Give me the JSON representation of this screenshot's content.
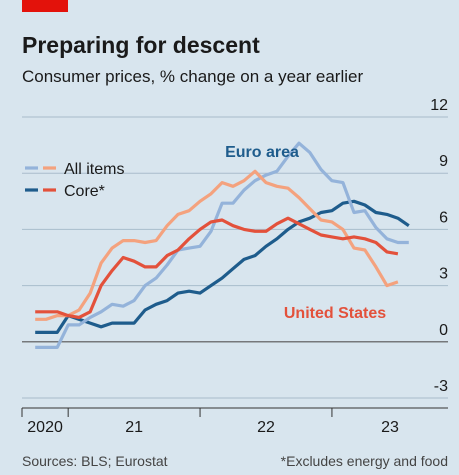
{
  "chart_data": {
    "type": "line",
    "title": "Preparing for descent",
    "subtitle": "Consumer prices, % change on a year earlier",
    "source": "Sources: BLS; Eurostat",
    "footnote": "*Excludes energy and food",
    "x": [
      2020.75,
      2020.833,
      2020.917,
      2021,
      2021.083,
      2021.167,
      2021.25,
      2021.333,
      2021.417,
      2021.5,
      2021.583,
      2021.667,
      2021.75,
      2021.833,
      2021.917,
      2022,
      2022.083,
      2022.167,
      2022.25,
      2022.333,
      2022.417,
      2022.5,
      2022.583,
      2022.667,
      2022.75,
      2022.833,
      2022.917,
      2023,
      2023.083,
      2023.167,
      2023.25,
      2023.333,
      2023.417,
      2023.5,
      2023.583
    ],
    "xlim": [
      2020.65,
      2023.88
    ],
    "xticks": [
      {
        "value": 2020,
        "label": "2020"
      },
      {
        "value": 2021,
        "label": "21"
      },
      {
        "value": 2022,
        "label": "22"
      },
      {
        "value": 2023,
        "label": "23"
      }
    ],
    "ylim": [
      -3,
      12
    ],
    "yticks": [
      -3,
      0,
      3,
      6,
      9,
      12
    ],
    "grid": true,
    "legend_entries": [
      {
        "label": "All items",
        "colors": [
          "#94b3da",
          "#f4a27e"
        ]
      },
      {
        "label": "Core*",
        "colors": [
          "#1e5c8c",
          "#e3513b"
        ]
      }
    ],
    "regions": [
      {
        "label": "Euro area",
        "color": "#1e5c8c"
      },
      {
        "label": "United States",
        "color": "#e3513b"
      }
    ],
    "series": [
      {
        "region": 0,
        "measure": 1,
        "color": "#1e5c8c",
        "values": [
          0.5,
          0.5,
          0.5,
          1.4,
          1.2,
          1.0,
          0.8,
          1.0,
          1.0,
          1.0,
          1.7,
          2.0,
          2.2,
          2.6,
          2.7,
          2.6,
          3.0,
          3.4,
          3.9,
          4.4,
          4.6,
          5.1,
          5.5,
          6.0,
          6.4,
          6.6,
          6.9,
          7.0,
          7.4,
          7.5,
          7.3,
          6.9,
          6.8,
          6.6,
          6.2
        ]
      },
      {
        "region": 0,
        "measure": 0,
        "color": "#94b3da",
        "values": [
          -0.3,
          -0.3,
          -0.3,
          0.9,
          0.9,
          1.3,
          1.6,
          2.0,
          1.9,
          2.2,
          3.0,
          3.4,
          4.1,
          4.9,
          5.0,
          5.1,
          5.9,
          7.4,
          7.4,
          8.1,
          8.6,
          8.9,
          9.1,
          9.9,
          10.6,
          10.1,
          9.2,
          8.6,
          8.5,
          6.9,
          7.0,
          6.1,
          5.5,
          5.3,
          5.3
        ]
      },
      {
        "region": 1,
        "measure": 0,
        "color": "#f4a27e",
        "values": [
          1.2,
          1.2,
          1.4,
          1.4,
          1.7,
          2.6,
          4.2,
          5.0,
          5.4,
          5.4,
          5.3,
          5.4,
          6.2,
          6.8,
          7.0,
          7.5,
          7.9,
          8.5,
          8.3,
          8.6,
          9.1,
          8.5,
          8.3,
          8.2,
          7.7,
          7.1,
          6.5,
          6.4,
          6.0,
          5.0,
          4.9,
          4.0,
          3.0,
          3.2,
          null
        ]
      },
      {
        "region": 1,
        "measure": 1,
        "color": "#e3513b",
        "values": [
          1.6,
          1.6,
          1.6,
          1.4,
          1.3,
          1.6,
          3.0,
          3.8,
          4.5,
          4.3,
          4.0,
          4.0,
          4.6,
          4.9,
          5.5,
          6.0,
          6.4,
          6.5,
          6.2,
          6.0,
          5.9,
          5.9,
          6.3,
          6.6,
          6.3,
          6.0,
          5.7,
          5.6,
          5.5,
          5.6,
          5.5,
          5.3,
          4.8,
          4.7,
          null
        ]
      }
    ]
  }
}
